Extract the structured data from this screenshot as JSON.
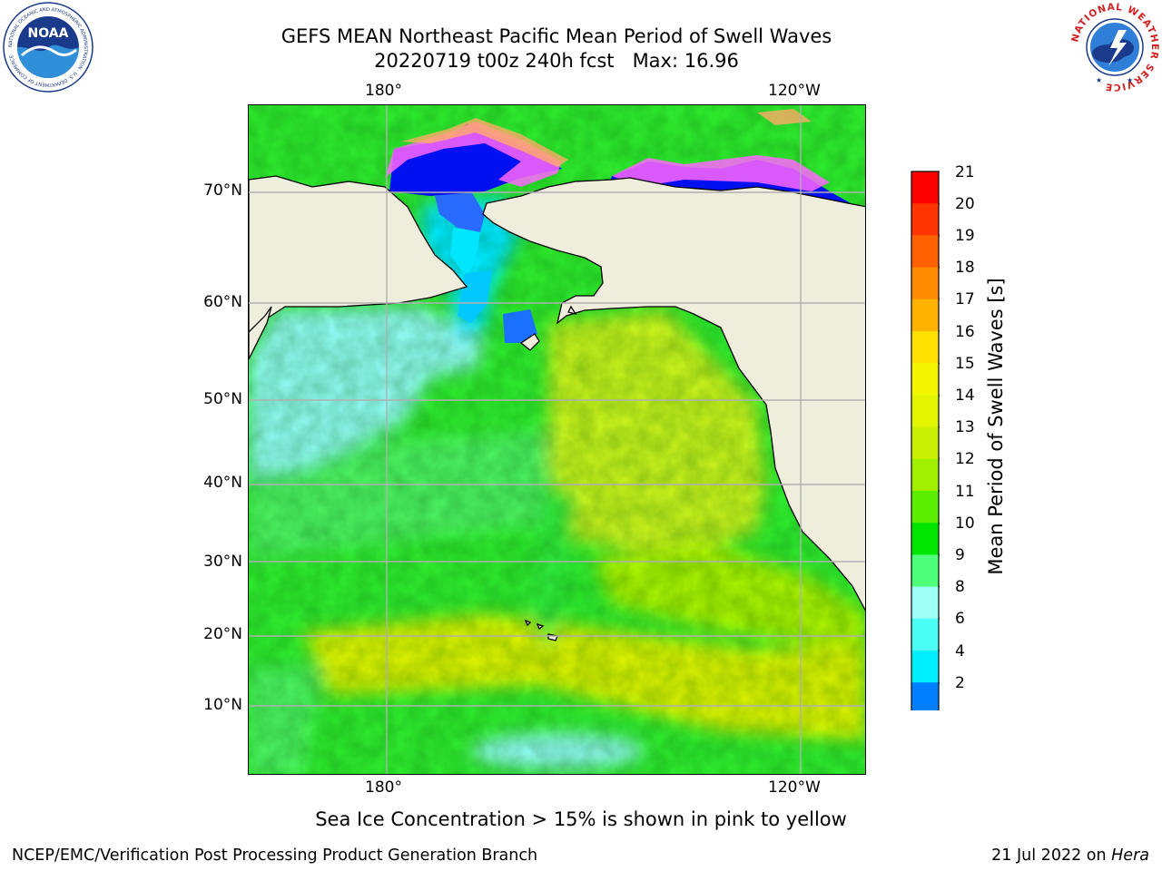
{
  "title": {
    "line1": "GEFS MEAN Northeast Pacific Mean Period of Swell Waves",
    "line2": "20220719 t00z 240h fcst   Max: 16.96"
  },
  "map": {
    "top_lon_labels": [
      "180°",
      "120°W"
    ],
    "bottom_lon_labels": [
      "180°",
      "120°W"
    ],
    "lat_labels": [
      "70°N",
      "60°N",
      "50°N",
      "40°N",
      "30°N",
      "20°N",
      "10°N"
    ],
    "colors": {
      "land": "#efeddc",
      "grid": "#b0b0b0",
      "coast": "#000000"
    }
  },
  "colorbar": {
    "title": "Mean Period of Swell Waves [s]",
    "ticks": [
      "21",
      "20",
      "19",
      "18",
      "17",
      "16",
      "15",
      "14",
      "13",
      "12",
      "11",
      "10",
      "9",
      "8",
      "6",
      "4",
      "2"
    ],
    "colors": [
      "#ff0000",
      "#ff3500",
      "#ff6100",
      "#ff8c00",
      "#ffb300",
      "#ffe000",
      "#f5f500",
      "#e3f500",
      "#c8f000",
      "#a0f000",
      "#5cf000",
      "#00e600",
      "#4dff7a",
      "#9dfff5",
      "#4bfff5",
      "#00f0ff",
      "#0080ff"
    ],
    "extend_color": "#0000ff"
  },
  "note": "Sea Ice Concentration > 15% is shown in pink to yellow",
  "footer": {
    "left": "NCEP/EMC/Verification Post Processing Product Generation Branch",
    "right_date": "21 Jul 2022 on ",
    "right_host": "Hera"
  },
  "logos": {
    "noaa": {
      "label": "NOAA",
      "ring_text": "NATIONAL OCEANIC AND ATMOSPHERIC ADMINISTRATION · U.S. DEPARTMENT OF COMMERCE"
    },
    "nws": {
      "ring_text": "NATIONAL WEATHER SERVICE"
    }
  }
}
